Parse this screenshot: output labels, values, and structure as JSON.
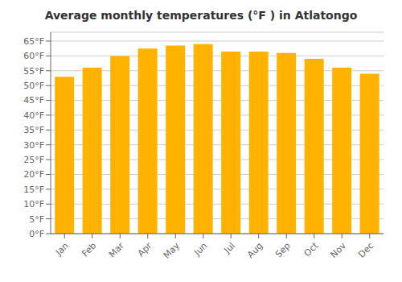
{
  "chart_data": {
    "type": "bar",
    "title": "Average monthly temperatures (°F ) in Atlatongo",
    "categories": [
      "Jan",
      "Feb",
      "Mar",
      "Apr",
      "May",
      "Jun",
      "Jul",
      "Aug",
      "Sep",
      "Oct",
      "Nov",
      "Dec"
    ],
    "values": [
      53,
      56,
      60,
      62.5,
      63.5,
      64,
      61.5,
      61.5,
      61,
      59,
      56,
      54
    ],
    "color": "#FFB300",
    "ylim": [
      0,
      68
    ],
    "yticks": [
      {
        "value": 0,
        "label": "0°F"
      },
      {
        "value": 5,
        "label": "5°F"
      },
      {
        "value": 10,
        "label": "10°F"
      },
      {
        "value": 15,
        "label": "15°F"
      },
      {
        "value": 20,
        "label": "20°F"
      },
      {
        "value": 25,
        "label": "25°F"
      },
      {
        "value": 30,
        "label": "30°F"
      },
      {
        "value": 35,
        "label": "35°F"
      },
      {
        "value": 40,
        "label": "40°F"
      },
      {
        "value": 45,
        "label": "45°F"
      },
      {
        "value": 50,
        "label": "50°F"
      },
      {
        "value": 55,
        "label": "55°F"
      },
      {
        "value": 60,
        "label": "60°F"
      },
      {
        "value": 65,
        "label": "65°F"
      }
    ],
    "grid": true
  }
}
